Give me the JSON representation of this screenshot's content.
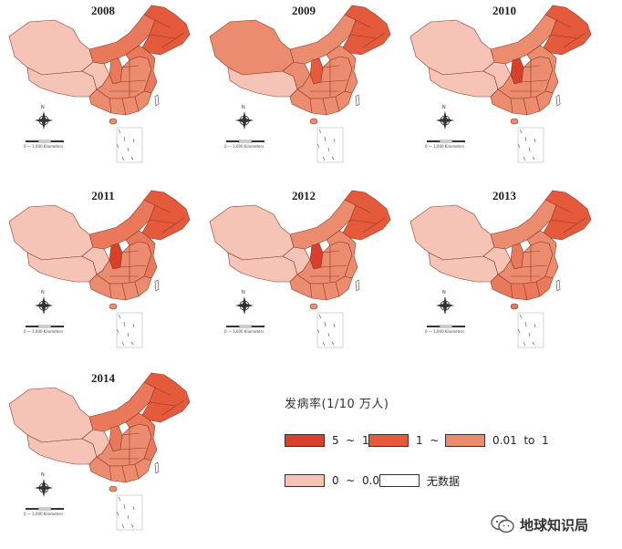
{
  "panels": [
    {
      "year": "2008",
      "colors": {
        "ne": "#e45a3a",
        "north": "#e9795a",
        "center": "#ec8c6e",
        "west": "#f5c4b6",
        "tibet": "#f5c4b6",
        "south": "#ec8c6e",
        "hot": "#e9795a"
      }
    },
    {
      "year": "2009",
      "colors": {
        "ne": "#e45a3a",
        "north": "#ec8c6e",
        "center": "#ec8c6e",
        "west": "#ec8c6e",
        "tibet": "#f5c4b6",
        "south": "#ec8c6e",
        "hot": "#e45a3a"
      }
    },
    {
      "year": "2010",
      "colors": {
        "ne": "#e45a3a",
        "north": "#ec8c6e",
        "center": "#ec8c6e",
        "west": "#f5c4b6",
        "tibet": "#f5c4b6",
        "south": "#ec8c6e",
        "hot": "#d9402a"
      }
    },
    {
      "year": "2011",
      "colors": {
        "ne": "#e45a3a",
        "north": "#e9795a",
        "center": "#ec8c6e",
        "west": "#f5c4b6",
        "tibet": "#f5c4b6",
        "south": "#ec8c6e",
        "hot": "#d9402a"
      }
    },
    {
      "year": "2012",
      "colors": {
        "ne": "#e45a3a",
        "north": "#ec8c6e",
        "center": "#ec8c6e",
        "west": "#f5c4b6",
        "tibet": "#f5c4b6",
        "south": "#ec8c6e",
        "hot": "#d9402a"
      }
    },
    {
      "year": "2013",
      "colors": {
        "ne": "#e45a3a",
        "north": "#ec8c6e",
        "center": "#ec8c6e",
        "west": "#f5c4b6",
        "tibet": "#f5c4b6",
        "south": "#e9795a",
        "hot": "#e9795a"
      }
    },
    {
      "year": "2014",
      "colors": {
        "ne": "#e45a3a",
        "north": "#e9795a",
        "center": "#ec8c6e",
        "west": "#f5c4b6",
        "tibet": "#f5c4b6",
        "south": "#ec8c6e",
        "hot": "#e9795a"
      }
    }
  ],
  "compass_letter": "N",
  "scale_text": "1,000",
  "scale_unit": "Kilometers",
  "scale_zero": "0",
  "legend": {
    "title": "发病率(1/10 万人)",
    "items": [
      {
        "label": "5  ~  11",
        "color": "#d9402a"
      },
      {
        "label": "1  ~  5",
        "color": "#e45a3a"
      },
      {
        "label": "0.01  to  1",
        "color": "#ec8c6e"
      },
      {
        "label": "0  ~  0.01",
        "color": "#f5c4b6"
      },
      {
        "label": "无数据",
        "color": "#ffffff"
      }
    ]
  },
  "watermark": {
    "text": "地球知识局",
    "icon": "wechat-icon"
  }
}
